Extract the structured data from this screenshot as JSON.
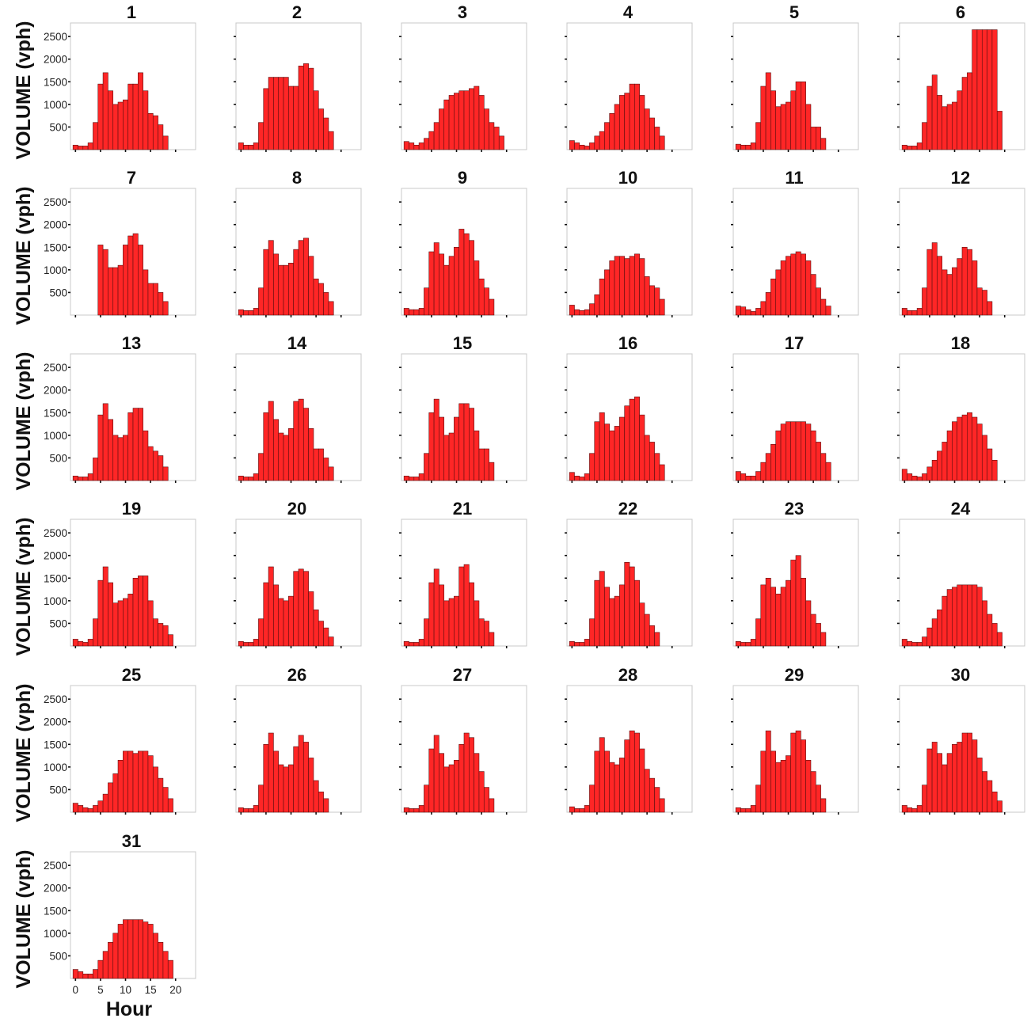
{
  "chart_data": {
    "type": "bar",
    "ylabel": "VOLUME (vph)",
    "xlabel": "Hour",
    "ylim": [
      0,
      2800
    ],
    "xlim": [
      -1,
      24
    ],
    "yticks": [
      500,
      1000,
      1500,
      2000,
      2500
    ],
    "ytick_labels": [
      "500",
      "1000",
      "1500",
      "2000",
      "2500"
    ],
    "xticks": [
      0,
      5,
      10,
      15,
      20
    ],
    "xtick_labels": [
      "0",
      "5",
      "10",
      "15",
      "20"
    ],
    "colors": {
      "bar_fill": "#ff2626",
      "bar_edge": "#5a0f0f",
      "frame": "#c8c8c8"
    },
    "hours": [
      0,
      1,
      2,
      3,
      4,
      5,
      6,
      7,
      8,
      9,
      10,
      11,
      12,
      13,
      14,
      15,
      16,
      17,
      18,
      19,
      20,
      21,
      22,
      23
    ],
    "panels": [
      {
        "title": "1",
        "values": [
          100,
          80,
          80,
          150,
          600,
          1450,
          1700,
          1300,
          1000,
          1050,
          1100,
          1450,
          1450,
          1700,
          1300,
          800,
          750,
          550,
          300,
          null,
          null,
          null,
          null,
          null
        ]
      },
      {
        "title": "2",
        "values": [
          150,
          100,
          100,
          150,
          600,
          1350,
          1600,
          1600,
          1600,
          1600,
          1400,
          1400,
          1850,
          1900,
          1800,
          1300,
          900,
          700,
          400,
          null,
          null,
          null,
          null,
          null
        ]
      },
      {
        "title": "3",
        "values": [
          180,
          150,
          100,
          150,
          250,
          400,
          600,
          900,
          1100,
          1200,
          1250,
          1300,
          1300,
          1350,
          1400,
          1200,
          900,
          600,
          500,
          300,
          null,
          null,
          null,
          null
        ]
      },
      {
        "title": "4",
        "values": [
          200,
          150,
          100,
          80,
          150,
          300,
          400,
          600,
          800,
          1000,
          1200,
          1250,
          1450,
          1450,
          1200,
          900,
          700,
          500,
          300,
          null,
          null,
          null,
          null,
          null
        ]
      },
      {
        "title": "5",
        "values": [
          120,
          100,
          100,
          150,
          600,
          1400,
          1700,
          1300,
          950,
          1000,
          1050,
          1300,
          1500,
          1500,
          1000,
          500,
          500,
          250,
          null,
          null,
          null,
          null,
          null,
          null
        ]
      },
      {
        "title": "6",
        "values": [
          100,
          80,
          80,
          150,
          600,
          1400,
          1650,
          1200,
          950,
          1000,
          1050,
          1300,
          1600,
          1700,
          2650,
          2650,
          2650,
          2650,
          2650,
          850,
          null,
          null,
          null,
          null
        ]
      },
      {
        "title": "7",
        "values": [
          null,
          null,
          null,
          null,
          null,
          1550,
          1450,
          1050,
          1050,
          1100,
          1550,
          1750,
          1800,
          1550,
          1000,
          700,
          700,
          500,
          300,
          null,
          null,
          null,
          null,
          null
        ]
      },
      {
        "title": "8",
        "values": [
          120,
          100,
          100,
          150,
          600,
          1450,
          1650,
          1350,
          1100,
          1100,
          1150,
          1450,
          1650,
          1700,
          1300,
          800,
          700,
          500,
          300,
          null,
          null,
          null,
          null,
          null
        ]
      },
      {
        "title": "9",
        "values": [
          150,
          120,
          120,
          150,
          600,
          1400,
          1600,
          1350,
          1100,
          1300,
          1500,
          1900,
          1800,
          1650,
          1200,
          800,
          600,
          350,
          null,
          null,
          null,
          null,
          null,
          null
        ]
      },
      {
        "title": "10",
        "values": [
          220,
          120,
          100,
          120,
          250,
          450,
          800,
          1000,
          1200,
          1300,
          1300,
          1250,
          1300,
          1350,
          1250,
          850,
          650,
          600,
          350,
          null,
          null,
          null,
          null,
          null
        ]
      },
      {
        "title": "11",
        "values": [
          200,
          180,
          120,
          80,
          150,
          300,
          500,
          800,
          1000,
          1200,
          1300,
          1350,
          1400,
          1350,
          1200,
          900,
          600,
          350,
          200,
          null,
          null,
          null,
          null,
          null
        ]
      },
      {
        "title": "12",
        "values": [
          150,
          100,
          100,
          150,
          600,
          1450,
          1600,
          1300,
          1000,
          900,
          1050,
          1250,
          1500,
          1450,
          1200,
          600,
          550,
          300,
          null,
          null,
          null,
          null,
          null,
          null
        ]
      },
      {
        "title": "13",
        "values": [
          100,
          80,
          80,
          150,
          500,
          1450,
          1700,
          1350,
          1000,
          950,
          1000,
          1500,
          1600,
          1600,
          1100,
          750,
          650,
          550,
          300,
          null,
          null,
          null,
          null,
          null
        ]
      },
      {
        "title": "14",
        "values": [
          100,
          80,
          80,
          150,
          600,
          1500,
          1750,
          1350,
          1050,
          1000,
          1150,
          1750,
          1800,
          1600,
          1150,
          700,
          700,
          500,
          300,
          null,
          null,
          null,
          null,
          null
        ]
      },
      {
        "title": "15",
        "values": [
          100,
          80,
          80,
          150,
          600,
          1500,
          1800,
          1400,
          1000,
          1050,
          1400,
          1700,
          1700,
          1600,
          1100,
          700,
          700,
          400,
          null,
          null,
          null,
          null,
          null,
          null
        ]
      },
      {
        "title": "16",
        "values": [
          180,
          100,
          80,
          150,
          600,
          1300,
          1500,
          1250,
          1100,
          1200,
          1400,
          1650,
          1800,
          1850,
          1450,
          1000,
          850,
          600,
          350,
          null,
          null,
          null,
          null,
          null
        ]
      },
      {
        "title": "17",
        "values": [
          200,
          150,
          100,
          100,
          200,
          400,
          600,
          800,
          1100,
          1250,
          1300,
          1300,
          1300,
          1300,
          1250,
          1100,
          850,
          600,
          400,
          null,
          null,
          null,
          null,
          null
        ]
      },
      {
        "title": "18",
        "values": [
          250,
          150,
          100,
          80,
          150,
          300,
          450,
          650,
          850,
          1100,
          1300,
          1400,
          1450,
          1500,
          1400,
          1250,
          1000,
          700,
          450,
          null,
          null,
          null,
          null,
          null
        ]
      },
      {
        "title": "19",
        "values": [
          150,
          100,
          80,
          150,
          600,
          1450,
          1750,
          1400,
          950,
          1000,
          1050,
          1150,
          1500,
          1550,
          1550,
          1000,
          600,
          500,
          450,
          250,
          null,
          null,
          null,
          null
        ]
      },
      {
        "title": "20",
        "values": [
          100,
          80,
          80,
          150,
          600,
          1400,
          1750,
          1350,
          1050,
          1000,
          1100,
          1650,
          1700,
          1650,
          1200,
          800,
          550,
          400,
          200,
          null,
          null,
          null,
          null,
          null
        ]
      },
      {
        "title": "21",
        "values": [
          100,
          80,
          80,
          150,
          600,
          1400,
          1700,
          1350,
          1000,
          1050,
          1100,
          1750,
          1800,
          1400,
          1000,
          600,
          550,
          300,
          null,
          null,
          null,
          null,
          null,
          null
        ]
      },
      {
        "title": "22",
        "values": [
          100,
          80,
          80,
          150,
          600,
          1450,
          1650,
          1300,
          1050,
          1100,
          1350,
          1850,
          1750,
          1450,
          950,
          700,
          450,
          300,
          null,
          null,
          null,
          null,
          null,
          null
        ]
      },
      {
        "title": "23",
        "values": [
          100,
          80,
          80,
          150,
          600,
          1350,
          1500,
          1300,
          1150,
          1300,
          1450,
          1900,
          2000,
          1500,
          1000,
          700,
          500,
          300,
          null,
          null,
          null,
          null,
          null,
          null
        ]
      },
      {
        "title": "24",
        "values": [
          150,
          100,
          80,
          80,
          200,
          400,
          600,
          800,
          1100,
          1250,
          1300,
          1350,
          1350,
          1350,
          1350,
          1300,
          1000,
          700,
          500,
          300,
          null,
          null,
          null,
          null
        ]
      },
      {
        "title": "25",
        "values": [
          200,
          150,
          100,
          80,
          150,
          250,
          400,
          650,
          850,
          1150,
          1350,
          1350,
          1300,
          1350,
          1350,
          1250,
          1000,
          750,
          550,
          300,
          null,
          null,
          null,
          null
        ]
      },
      {
        "title": "26",
        "values": [
          100,
          80,
          80,
          150,
          600,
          1500,
          1750,
          1350,
          1050,
          1000,
          1050,
          1450,
          1700,
          1550,
          1200,
          700,
          450,
          300,
          null,
          null,
          null,
          null,
          null,
          null
        ]
      },
      {
        "title": "27",
        "values": [
          100,
          80,
          80,
          150,
          600,
          1400,
          1700,
          1300,
          1000,
          1050,
          1150,
          1500,
          1750,
          1650,
          1300,
          900,
          550,
          300,
          null,
          null,
          null,
          null,
          null,
          null
        ]
      },
      {
        "title": "28",
        "values": [
          120,
          80,
          80,
          150,
          600,
          1350,
          1650,
          1350,
          1100,
          1050,
          1200,
          1600,
          1800,
          1750,
          1400,
          950,
          750,
          550,
          300,
          null,
          null,
          null,
          null,
          null
        ]
      },
      {
        "title": "29",
        "values": [
          100,
          80,
          80,
          150,
          600,
          1350,
          1800,
          1350,
          1100,
          1150,
          1250,
          1750,
          1800,
          1600,
          1150,
          900,
          600,
          300,
          null,
          null,
          null,
          null,
          null,
          null
        ]
      },
      {
        "title": "30",
        "values": [
          150,
          100,
          80,
          150,
          600,
          1400,
          1550,
          1300,
          1050,
          1300,
          1500,
          1550,
          1750,
          1750,
          1600,
          1200,
          900,
          700,
          450,
          250,
          null,
          null,
          null,
          null
        ]
      },
      {
        "title": "31",
        "values": [
          200,
          150,
          100,
          100,
          200,
          400,
          600,
          800,
          1000,
          1200,
          1300,
          1300,
          1300,
          1300,
          1250,
          1200,
          1000,
          800,
          600,
          400,
          null,
          null,
          null,
          null
        ]
      }
    ]
  }
}
